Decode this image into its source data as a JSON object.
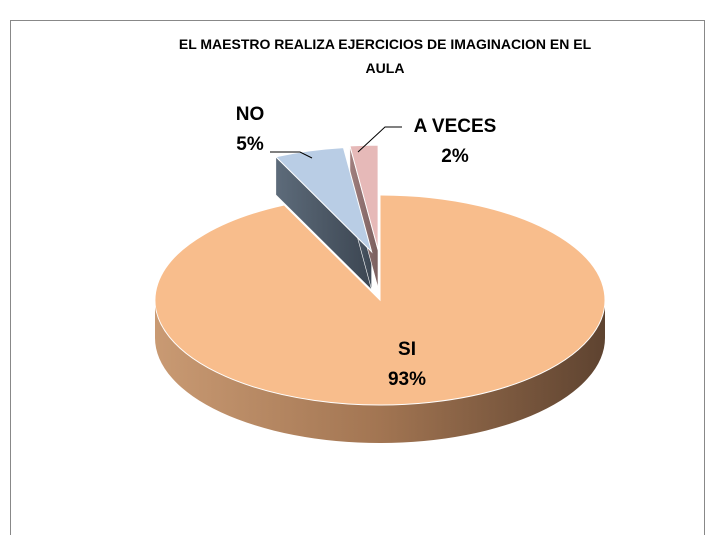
{
  "chart_data": {
    "type": "pie3d",
    "title": "EL MAESTRO REALIZA EJERCICIOS DE IMAGINACION EN EL AULA",
    "categories": [
      "SI",
      "NO",
      "A VECES"
    ],
    "values": [
      93,
      5,
      2
    ],
    "value_labels": [
      "93%",
      "5%",
      "2%"
    ],
    "colors": [
      "#f8bd8c",
      "#b9cde5",
      "#e6b9b8"
    ]
  }
}
